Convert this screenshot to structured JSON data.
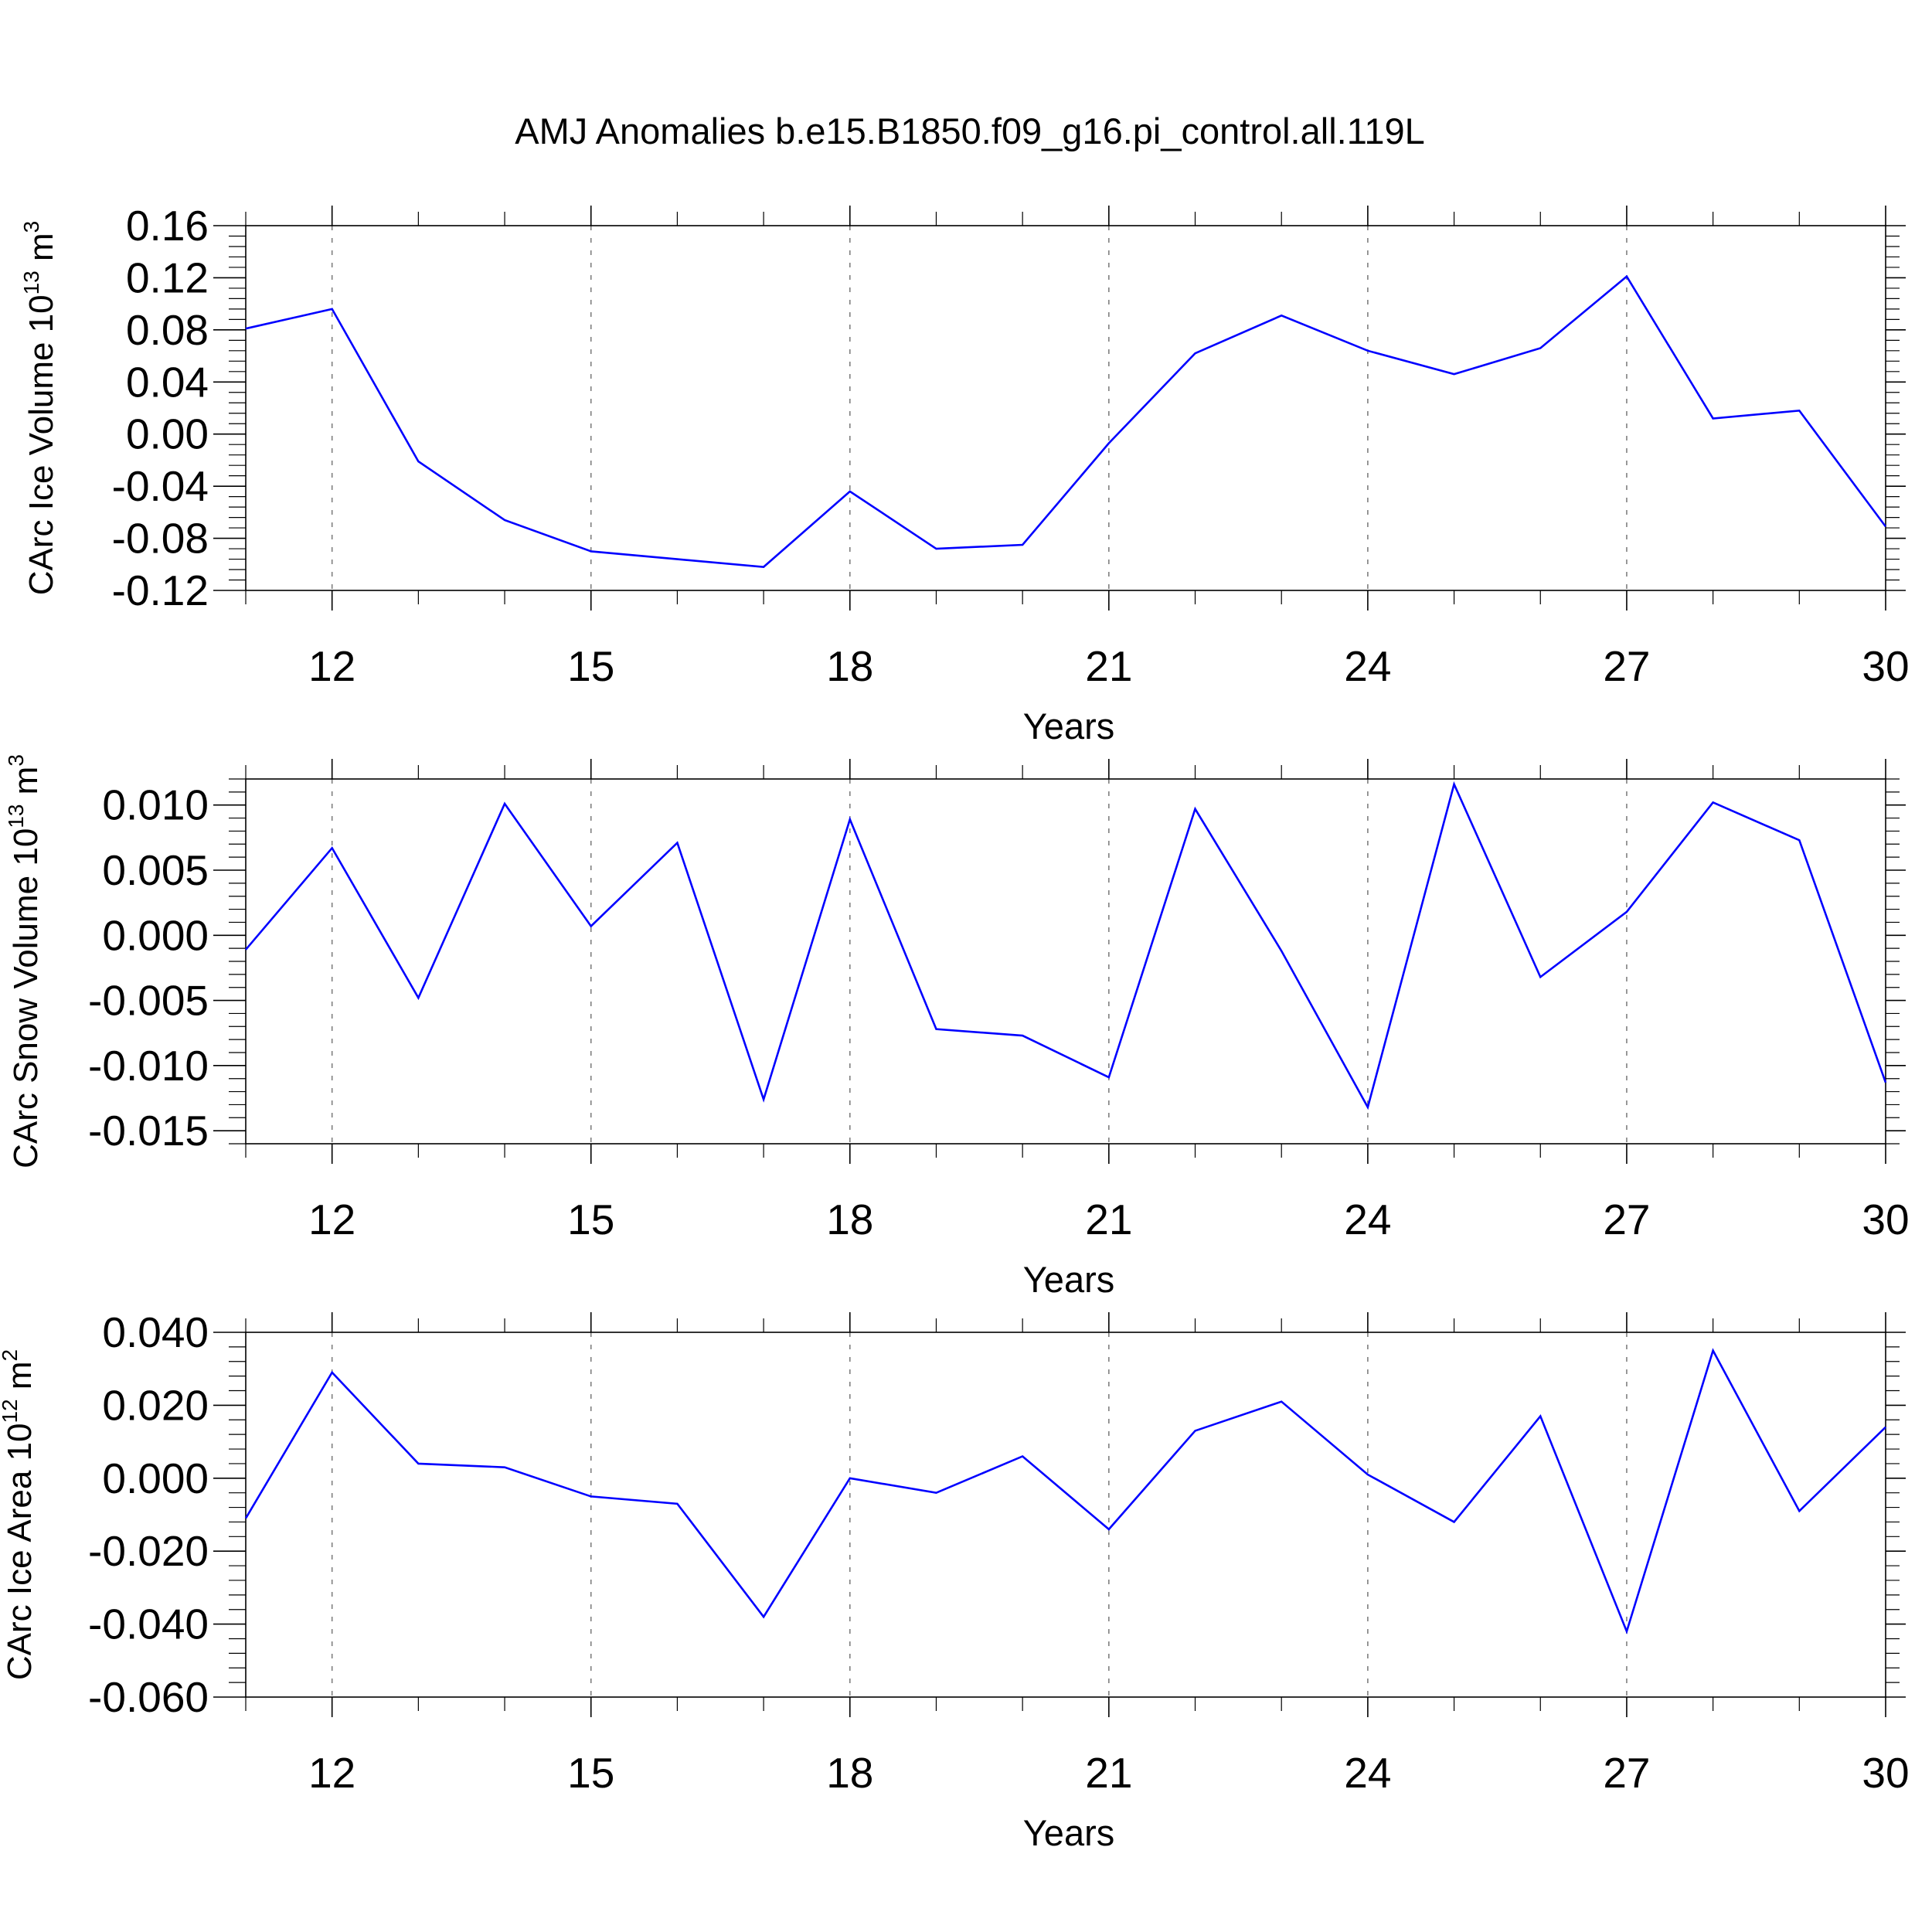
{
  "figure": {
    "title": "AMJ Anomalies b.e15.B1850.f09_g16.pi_control.all.119L"
  },
  "chart_data": [
    {
      "type": "line",
      "ylabel": "CArc Ice Volume 10",
      "ylabel_exp": "13",
      "ylabel_unit": " m",
      "ylabel_unit_exp": "3",
      "xlabel": "Years",
      "xlim": [
        11,
        30
      ],
      "ylim": [
        -0.12,
        0.16
      ],
      "x_ticks": [
        12,
        15,
        18,
        21,
        24,
        27,
        30
      ],
      "y_ticks": [
        -0.12,
        -0.08,
        -0.04,
        0.0,
        0.04,
        0.08,
        0.12,
        0.16
      ],
      "y_tick_labels": [
        "-0.12",
        "-0.08",
        "-0.04",
        "0.00",
        "0.04",
        "0.08",
        "0.12",
        "0.16"
      ],
      "grid_x": true,
      "color": "#0000ff",
      "x": [
        11,
        12,
        13,
        14,
        15,
        16,
        17,
        18,
        19,
        20,
        21,
        22,
        23,
        24,
        25,
        26,
        27,
        28,
        29,
        30
      ],
      "y": [
        0.081,
        0.096,
        -0.021,
        -0.066,
        -0.09,
        -0.096,
        -0.102,
        -0.044,
        -0.088,
        -0.085,
        -0.007,
        0.062,
        0.091,
        0.064,
        0.046,
        0.066,
        0.121,
        0.012,
        0.018,
        -0.071
      ]
    },
    {
      "type": "line",
      "ylabel": "CArc Snow Volume 10",
      "ylabel_exp": "13",
      "ylabel_unit": " m",
      "ylabel_unit_exp": "3",
      "xlabel": "Years",
      "xlim": [
        11,
        30
      ],
      "ylim": [
        -0.016,
        0.012
      ],
      "x_ticks": [
        12,
        15,
        18,
        21,
        24,
        27,
        30
      ],
      "y_ticks": [
        -0.015,
        -0.01,
        -0.005,
        0.0,
        0.005,
        0.01
      ],
      "y_tick_labels": [
        "-0.015",
        "-0.010",
        "-0.005",
        "0.000",
        "0.005",
        "0.010"
      ],
      "grid_x": true,
      "color": "#0000ff",
      "x": [
        11,
        12,
        13,
        14,
        15,
        16,
        17,
        18,
        19,
        20,
        21,
        22,
        23,
        24,
        25,
        26,
        27,
        28,
        29,
        30
      ],
      "y": [
        -0.0011,
        0.0067,
        -0.0048,
        0.0101,
        0.0007,
        0.0071,
        -0.0126,
        0.0089,
        -0.0072,
        -0.0077,
        -0.0109,
        0.0097,
        -0.0012,
        -0.0132,
        0.0116,
        -0.0032,
        0.0018,
        0.0102,
        0.0073,
        -0.0113
      ]
    },
    {
      "type": "line",
      "ylabel": "CArc Ice Area 10",
      "ylabel_exp": "12",
      "ylabel_unit": " m",
      "ylabel_unit_exp": "2",
      "xlabel": "Years",
      "xlim": [
        11,
        30
      ],
      "ylim": [
        -0.06,
        0.04
      ],
      "x_ticks": [
        12,
        15,
        18,
        21,
        24,
        27,
        30
      ],
      "y_ticks": [
        -0.06,
        -0.04,
        -0.02,
        0.0,
        0.02,
        0.04
      ],
      "y_tick_labels": [
        "-0.060",
        "-0.040",
        "-0.020",
        "0.000",
        "0.020",
        "0.040"
      ],
      "grid_x": true,
      "color": "#0000ff",
      "x": [
        11,
        12,
        13,
        14,
        15,
        16,
        17,
        18,
        19,
        20,
        21,
        22,
        23,
        24,
        25,
        26,
        27,
        28,
        29,
        30
      ],
      "y": [
        -0.011,
        0.029,
        0.004,
        0.003,
        -0.005,
        -0.007,
        -0.038,
        0.0,
        -0.004,
        0.006,
        -0.014,
        0.013,
        0.021,
        0.001,
        -0.012,
        0.017,
        -0.042,
        0.035,
        -0.009,
        0.014
      ]
    }
  ]
}
